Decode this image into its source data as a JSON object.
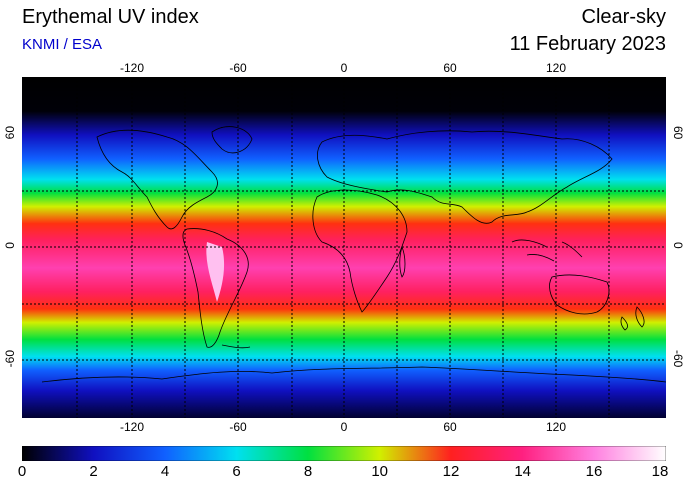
{
  "header": {
    "title": "Erythemal UV index",
    "credit": "KNMI / ESA",
    "condition": "Clear-sky",
    "date": "11 February 2023"
  },
  "map": {
    "lon_ticks": [
      "-120",
      "-60",
      "0",
      "60",
      "120"
    ],
    "lat_ticks": [
      "60",
      "0",
      "-60"
    ],
    "projection": "equirectangular",
    "grid": "dotted, 30 degree spacing"
  },
  "colorbar": {
    "min": 0,
    "max": 18,
    "labels": [
      "0",
      "2",
      "4",
      "6",
      "8",
      "10",
      "12",
      "14",
      "16",
      "18"
    ]
  },
  "colors": {
    "c0": "#000000",
    "c2": "#1010c0",
    "c4": "#1060ff",
    "c6": "#00e0f0",
    "c8": "#00e040",
    "c10": "#d0f000",
    "c12": "#ff2020",
    "c14": "#ff2080",
    "c16": "#ff80e0",
    "c18": "#ffffff"
  }
}
